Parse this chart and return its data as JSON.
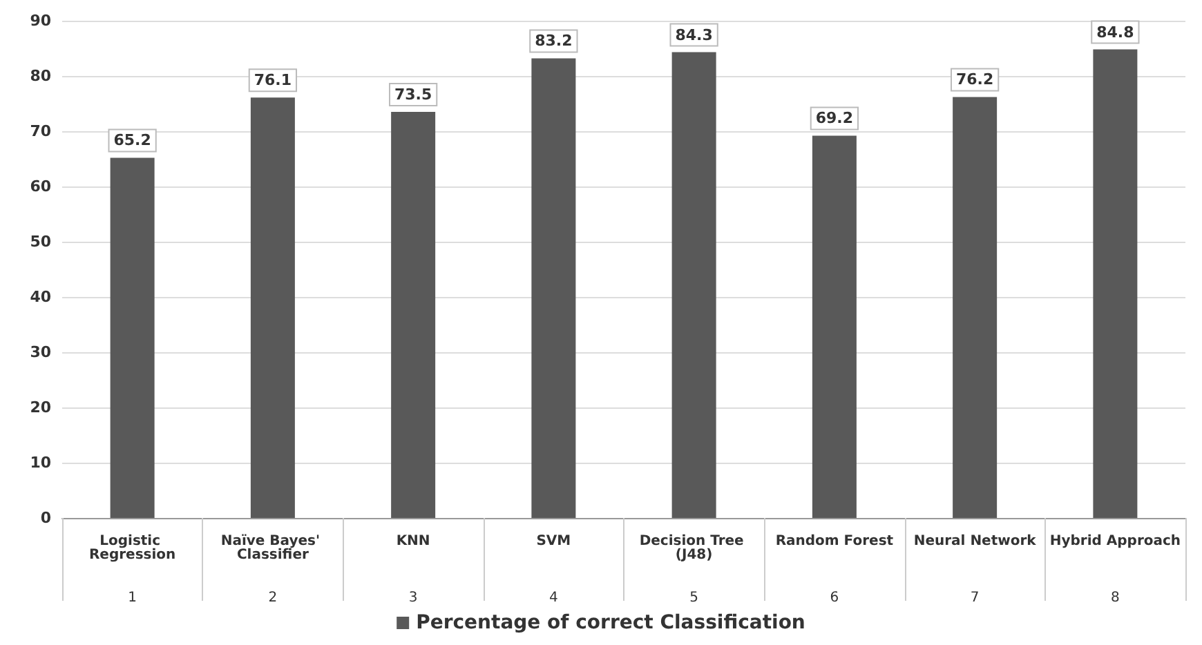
{
  "chart_data": {
    "type": "bar",
    "categories": [
      "Logistic Regression",
      "Naïve Bayes' Classifier",
      "KNN",
      "SVM",
      "Decision Tree (J48)",
      "Random Forest",
      "Neural Network",
      "Hybrid Approach"
    ],
    "series": [
      {
        "name": "Percentage of correct Classification",
        "color": "#595959",
        "values": [
          65.2,
          76.1,
          73.5,
          83.2,
          84.3,
          69.2,
          76.2,
          84.8
        ]
      }
    ],
    "annotations": [
      "1",
      "2",
      "3",
      "4",
      "5",
      "6",
      "7",
      "8"
    ],
    "ylim": [
      0,
      90
    ],
    "yticks": [
      0,
      10,
      20,
      30,
      40,
      50,
      60,
      70,
      80,
      90
    ],
    "grid": "y",
    "legend": "bottom",
    "data_labels": true
  }
}
